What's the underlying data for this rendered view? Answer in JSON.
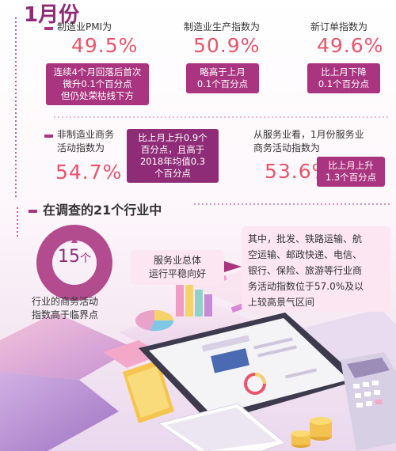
{
  "title": "1月份",
  "stats": [
    {
      "label": "制造业PMI为",
      "value": "49.5%",
      "note": [
        "连续4个月回落后首次",
        "微升0.1个百分点",
        "但仍处荣枯线下方"
      ]
    },
    {
      "label": "制造业生产指数为",
      "value": "50.9%",
      "note": [
        "略高于上月",
        "0.1个百分点"
      ]
    },
    {
      "label": "新订单指数为",
      "value": "49.6%",
      "note": [
        "比上月下降",
        "0.1个百分点"
      ]
    },
    {
      "label": [
        "非制造业商务",
        "活动指数为"
      ],
      "value": "54.7%",
      "note": [
        "比上月上升0.9个",
        "百分点，且高于",
        "2018年均值0.3",
        "个百分点"
      ]
    },
    {
      "label": [
        "从服务业看，1月份服务业",
        "商务活动指数为"
      ],
      "value": "53.6%",
      "note": [
        "比上月上升",
        "1.3个百分点"
      ]
    }
  ],
  "section2": {
    "heading": "在调查的21个行业中",
    "donut_number": "15",
    "donut_unit": "个",
    "donut_caption": [
      "行业的商务活动",
      "指数高于临界点"
    ],
    "service_bubble": [
      "服务业总体",
      "运行平稳向好"
    ],
    "detail": [
      "其中，批发、铁路运输、航",
      "空运输、邮政快递、电信、",
      "银行、保险、旅游等行业商",
      "务活动指数位于57.0%及以",
      "上较高景气区间"
    ]
  },
  "colors": {
    "accent": "#a9347f",
    "value": "#e9546b",
    "donut": "#b24c8e"
  },
  "icons": [
    "tablet-illustration",
    "keyboard-illustration",
    "calculator-illustration",
    "folder-icon",
    "coin-stack-icon",
    "bar-chart-icon",
    "pie-chart-icon"
  ]
}
